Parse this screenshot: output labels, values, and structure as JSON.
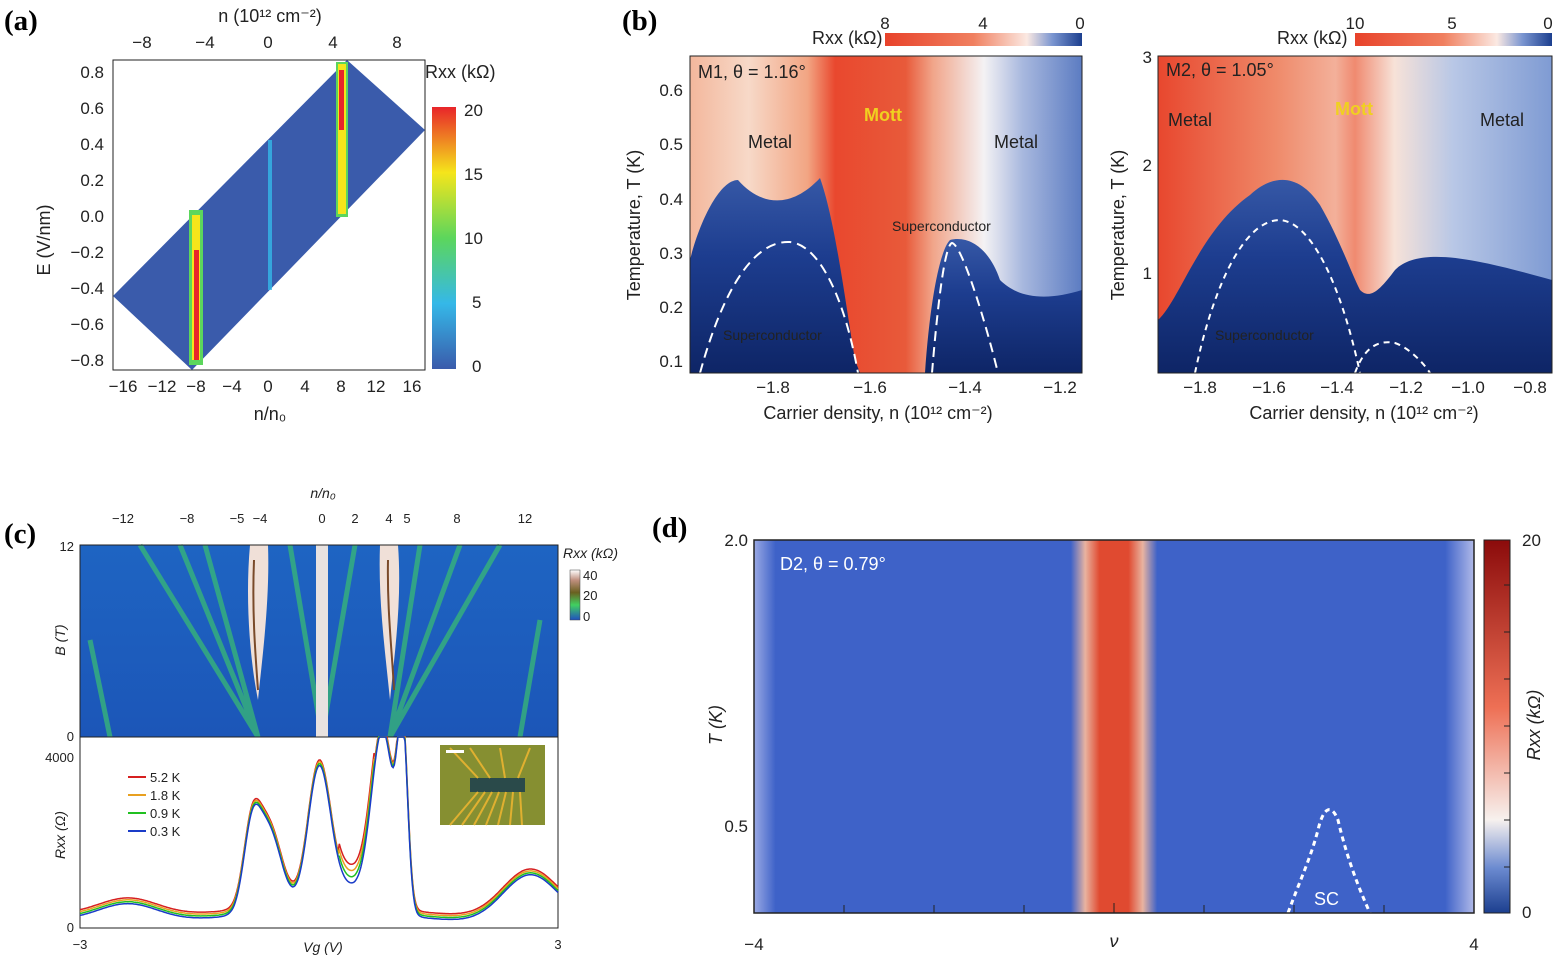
{
  "panels": {
    "a": {
      "label": "(a)",
      "top_axis_label": "n (10¹² cm⁻²)",
      "top_ticks": [
        "−8",
        "−4",
        "0",
        "4",
        "8"
      ],
      "x_label": "n/n₀",
      "x_ticks": [
        "−16",
        "−12",
        "−8",
        "−4",
        "0",
        "4",
        "8",
        "12",
        "16"
      ],
      "y_label": "E (V/nm)",
      "y_ticks": [
        "0.8",
        "0.6",
        "0.4",
        "0.2",
        "0.0",
        "−0.2",
        "−0.4",
        "−0.6",
        "−0.8"
      ],
      "colorbar_label": "Rxx (kΩ)",
      "colorbar_ticks": [
        "20",
        "15",
        "10",
        "5",
        "0"
      ],
      "background_color": "#3a5bab"
    },
    "b1": {
      "label": "(b)",
      "colorbar_label": "Rxx (kΩ)",
      "colorbar_ticks": [
        "8",
        "4",
        "0"
      ],
      "sample_label": "M1, θ = 1.16°",
      "y_label": "Temperature, T (K)",
      "y_ticks": [
        "0.6",
        "0.5",
        "0.4",
        "0.3",
        "0.2",
        "0.1"
      ],
      "x_label": "Carrier density, n (10¹² cm⁻²)",
      "x_ticks": [
        "−1.8",
        "−1.6",
        "−1.4",
        "−1.2"
      ],
      "regions": {
        "metal_left": "Metal",
        "mott": "Mott",
        "metal_right": "Metal",
        "sc_left": "Superconductor",
        "sc_right": "Superconductor"
      }
    },
    "b2": {
      "colorbar_label": "Rxx (kΩ)",
      "colorbar_ticks": [
        "10",
        "5",
        "0"
      ],
      "sample_label": "M2, θ = 1.05°",
      "y_label": "Temperature, T (K)",
      "y_ticks": [
        "3",
        "2",
        "1"
      ],
      "x_label": "Carrier density, n (10¹² cm⁻²)",
      "x_ticks": [
        "−1.8",
        "−1.6",
        "−1.4",
        "−1.2",
        "−1.0",
        "−0.8"
      ],
      "regions": {
        "metal_left": "Metal",
        "mott": "Mott",
        "metal_right": "Metal",
        "sc": "Superconductor"
      }
    },
    "c": {
      "label": "(c)",
      "top_axis_label": "n/n₀",
      "top_ticks": [
        "−12",
        "−8",
        "−5",
        "−4",
        "0",
        "2",
        "4",
        "5",
        "8",
        "12"
      ],
      "top_y_label": "B (T)",
      "top_y_ticks": [
        "12",
        "0"
      ],
      "colorbar_label": "Rxx (kΩ)",
      "colorbar_ticks": [
        "40",
        "20",
        "0"
      ],
      "bottom_y_label": "Rxx (Ω)",
      "bottom_y_ticks": [
        "4000",
        "0"
      ],
      "x_label": "Vg (V)",
      "x_ticks": [
        "−3",
        "3"
      ]
    },
    "d": {
      "label": "(d)",
      "sample_label": "D2, θ = 0.79°",
      "y_label": "T (K)",
      "y_ticks": [
        "2.0",
        "0.5"
      ],
      "x_label": "ν",
      "x_ticks": [
        "−4",
        "0",
        "4"
      ],
      "colorbar_label": "Rxx (kΩ)",
      "colorbar_ticks": [
        "20",
        "0"
      ],
      "sc_label": "SC"
    }
  },
  "chart_data": [
    {
      "type": "heatmap",
      "panel": "a",
      "xlabel": "n/n₀",
      "ylabel": "E (V/nm)",
      "xlim": [
        -17,
        17
      ],
      "ylim": [
        -0.85,
        0.85
      ],
      "colorbar": {
        "label": "Rxx (kΩ)",
        "range": [
          0,
          20
        ]
      },
      "peaks": [
        {
          "n_over_n0": -8,
          "E_range": [
            -0.85,
            0.05
          ],
          "Rxx_kohm": 20
        },
        {
          "n_over_n0": 0,
          "E_range": [
            -0.25,
            0.45
          ],
          "Rxx_kohm": 5
        },
        {
          "n_over_n0": 8,
          "E_range": [
            0.0,
            0.85
          ],
          "Rxx_kohm": 20
        }
      ]
    },
    {
      "type": "heatmap",
      "panel": "b-M1",
      "xlabel": "Carrier density, n (10¹² cm⁻²)",
      "ylabel": "Temperature, T (K)",
      "xlim": [
        -1.95,
        -1.15
      ],
      "ylim": [
        0.08,
        0.67
      ],
      "colorbar": {
        "label": "Rxx (kΩ)",
        "range": [
          0,
          8
        ]
      },
      "sc_domes": [
        {
          "n_center": -1.76,
          "Tc_max": 0.32,
          "n_range": [
            -1.93,
            -1.59
          ]
        },
        {
          "n_center": -1.43,
          "Tc_max": 0.31,
          "n_range": [
            -1.48,
            -1.36
          ]
        }
      ],
      "mott_n_range": [
        -1.62,
        -1.45
      ]
    },
    {
      "type": "heatmap",
      "panel": "b-M2",
      "xlabel": "Carrier density, n (10¹² cm⁻²)",
      "ylabel": "Temperature, T (K)",
      "xlim": [
        -1.92,
        -0.77
      ],
      "ylim": [
        0.1,
        3.0
      ],
      "colorbar": {
        "label": "Rxx (kΩ)",
        "range": [
          0,
          10
        ]
      },
      "sc_domes": [
        {
          "n_center": -1.55,
          "Tc_max": 1.5,
          "n_range": [
            -1.82,
            -1.3
          ]
        },
        {
          "n_center": -1.22,
          "Tc_max": 0.3,
          "n_range": [
            -1.3,
            -1.12
          ]
        }
      ],
      "mott_n_range": [
        -1.4,
        -1.25
      ]
    },
    {
      "type": "line",
      "panel": "c",
      "xlabel": "Vg (V)",
      "ylabel": "Rxx (Ω)",
      "xlim": [
        -3,
        3
      ],
      "ylim": [
        0,
        4000
      ],
      "series": [
        {
          "name": "5.2 K",
          "color": "#d62020"
        },
        {
          "name": "1.8 K",
          "color": "#e8a020"
        },
        {
          "name": "0.9 K",
          "color": "#20c020"
        },
        {
          "name": "0.3 K",
          "color": "#1a3cc8"
        }
      ],
      "peaks_Vg": [
        -2.4,
        -0.8,
        -0.6,
        0.0,
        0.35,
        0.85,
        1.08,
        2.65
      ]
    },
    {
      "type": "heatmap",
      "panel": "d",
      "xlabel": "ν",
      "ylabel": "T (K)",
      "xlim": [
        -4,
        4
      ],
      "colorbar": {
        "label": "Rxx (kΩ)",
        "range": [
          0,
          20
        ]
      },
      "features": [
        {
          "nu": 0,
          "Rxx_kohm": 15
        },
        {
          "nu": -4,
          "Rxx_kohm": 3
        },
        {
          "nu": 4,
          "Rxx_kohm": 3
        }
      ],
      "sc_dome": {
        "nu_center": 2.4,
        "label": "SC"
      }
    }
  ]
}
